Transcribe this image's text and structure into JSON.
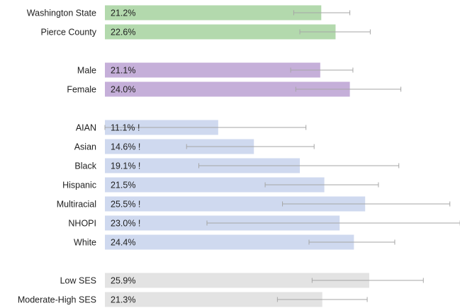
{
  "chart_data": {
    "type": "bar",
    "orientation": "horizontal",
    "title": "",
    "xlabel": "",
    "ylabel": "",
    "xlim": [
      0,
      36
    ],
    "grid": false,
    "legend": "none",
    "colors": {
      "green": "#b3d9ad",
      "purple": "#c5afd9",
      "blue": "#cfd9ef",
      "gray": "#e3e3e3",
      "error_bar": "#a6a6a6"
    },
    "groups": [
      {
        "color": "green",
        "rows": [
          {
            "category": "Washington State",
            "value": 21.2,
            "label": "21.2%",
            "ci": [
              18.5,
              24.0
            ]
          },
          {
            "category": "Pierce County",
            "value": 22.6,
            "label": "22.6%",
            "ci": [
              19.1,
              26.0
            ]
          }
        ]
      },
      {
        "color": "purple",
        "rows": [
          {
            "category": "Male",
            "value": 21.1,
            "label": "21.1%",
            "ci": [
              18.2,
              24.3
            ]
          },
          {
            "category": "Female",
            "value": 24.0,
            "label": "24.0%",
            "ci": [
              18.7,
              29.0
            ]
          }
        ]
      },
      {
        "color": "blue",
        "rows": [
          {
            "category": "AIAN",
            "value": 11.1,
            "label": "11.1% !",
            "ci": [
              0.0,
              19.7
            ]
          },
          {
            "category": "Asian",
            "value": 14.6,
            "label": "14.6% !",
            "ci": [
              8.0,
              20.5
            ]
          },
          {
            "category": "Black",
            "value": 19.1,
            "label": "19.1% !",
            "ci": [
              9.2,
              28.8
            ]
          },
          {
            "category": "Hispanic",
            "value": 21.5,
            "label": "21.5%",
            "ci": [
              15.7,
              26.8
            ]
          },
          {
            "category": "Multiracial",
            "value": 25.5,
            "label": "25.5% !",
            "ci": [
              17.4,
              33.8
            ]
          },
          {
            "category": "NHOPI",
            "value": 23.0,
            "label": "23.0% !",
            "ci": [
              10.0,
              34.8
            ]
          },
          {
            "category": "White",
            "value": 24.4,
            "label": "24.4%",
            "ci": [
              20.0,
              28.4
            ]
          }
        ]
      },
      {
        "color": "gray",
        "rows": [
          {
            "category": "Low SES",
            "value": 25.9,
            "label": "25.9%",
            "ci": [
              20.3,
              31.2
            ]
          },
          {
            "category": "Moderate-High SES",
            "value": 21.3,
            "label": "21.3%",
            "ci": [
              16.9,
              25.7
            ]
          }
        ]
      }
    ]
  }
}
